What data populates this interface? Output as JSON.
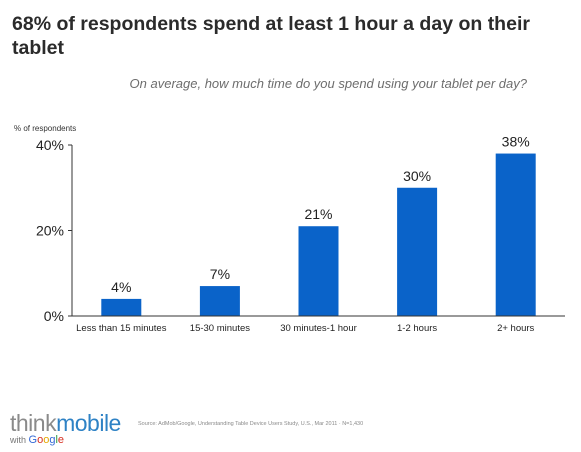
{
  "title": "68% of respondents spend at least 1 hour a day on their tablet",
  "subtitle": "On average, how much time do you spend using your tablet per day?",
  "source": "Source: AdMob/Google, Understanding Table Device Users Study, U.S., Mar 2011 · N=1,430",
  "logo": {
    "think": "think",
    "mobile": "mobile",
    "with": "with",
    "google": "Google"
  },
  "colors": {
    "bar": "#0a63c9",
    "axis": "#333333"
  },
  "chart_data": {
    "type": "bar",
    "ylabel": "% of respondents",
    "categories": [
      "Less than 15 minutes",
      "15-30 minutes",
      "30 minutes-1 hour",
      "1-2 hours",
      "2+ hours"
    ],
    "values": [
      4,
      7,
      21,
      30,
      38
    ],
    "value_labels": [
      "4%",
      "7%",
      "21%",
      "30%",
      "38%"
    ],
    "yticks": [
      0,
      20,
      40
    ],
    "ytick_labels": [
      "0%",
      "20%",
      "40%"
    ],
    "ylim": [
      0,
      40
    ],
    "grid": false,
    "legend": "none"
  }
}
